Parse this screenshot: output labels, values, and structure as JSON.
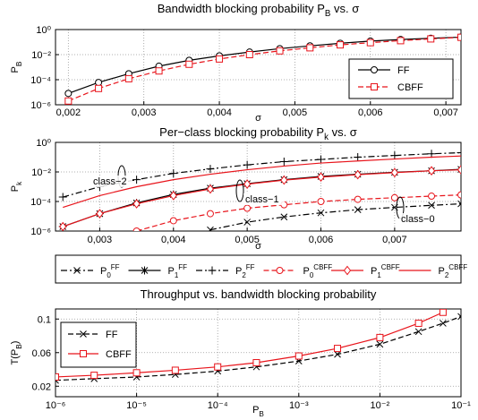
{
  "chart_data": [
    {
      "type": "line",
      "title": [
        "Bandwidth blocking probability P",
        "B",
        " vs. σ"
      ],
      "xlabel": "σ",
      "ylabel": [
        "P",
        "B"
      ],
      "x": [
        0.002,
        0.0024,
        0.0028,
        0.0032,
        0.0036,
        0.004,
        0.0044,
        0.0048,
        0.0052,
        0.0056,
        0.006,
        0.0064,
        0.0068,
        0.0072
      ],
      "series": [
        {
          "name": "FF",
          "color": "#000000",
          "style": "solid",
          "marker": "circle",
          "values": [
            8e-06,
            6e-05,
            0.0003,
            0.0012,
            0.0035,
            0.008,
            0.016,
            0.03,
            0.05,
            0.08,
            0.12,
            0.16,
            0.2,
            0.25
          ]
        },
        {
          "name": "CBFF",
          "color": "#e8141b",
          "style": "dashed",
          "marker": "square",
          "values": [
            2e-06,
            2e-05,
            0.00012,
            0.0005,
            0.0017,
            0.0045,
            0.01,
            0.02,
            0.035,
            0.06,
            0.09,
            0.13,
            0.18,
            0.24
          ]
        }
      ],
      "xlim": [
        0.00183,
        0.0072
      ],
      "xticks": [
        {
          "value": 0.002,
          "label": "0,002"
        },
        {
          "value": 0.003,
          "label": "0,003"
        },
        {
          "value": 0.004,
          "label": "0,004"
        },
        {
          "value": 0.005,
          "label": "0,005"
        },
        {
          "value": 0.006,
          "label": "0,006"
        },
        {
          "value": 0.007,
          "label": "0,007"
        }
      ],
      "ylog": true,
      "ylim": [
        1e-06,
        1
      ],
      "yticks": [
        {
          "value": 1e-06,
          "label": "10⁻⁶"
        },
        {
          "value": 0.0001,
          "label": "10⁻⁴"
        },
        {
          "value": 0.01,
          "label": "10⁻²"
        },
        {
          "value": 1,
          "label": "10⁰"
        }
      ],
      "grid": true,
      "legend": "lower right"
    },
    {
      "type": "line",
      "title": [
        "Per−class blocking probability P",
        "k",
        " vs. σ"
      ],
      "xlabel": "σ",
      "ylabel": [
        "P",
        "k"
      ],
      "annotations": [
        "class−2",
        "class−1",
        "class−0"
      ],
      "x": [
        0.0025,
        0.003,
        0.0035,
        0.004,
        0.0045,
        0.005,
        0.0055,
        0.006,
        0.0065,
        0.007,
        0.0075,
        0.0079
      ],
      "series": [
        {
          "name": "P",
          "sub": "0",
          "sup": "FF",
          "color": "#000000",
          "style": "dashdot",
          "marker": "x",
          "values": [
            null,
            null,
            null,
            null,
            1.2e-06,
            4e-06,
            9e-06,
            1.7e-05,
            2.8e-05,
            4e-05,
            5.5e-05,
            7e-05
          ]
        },
        {
          "name": "P",
          "sub": "1",
          "sup": "FF",
          "color": "#000000",
          "style": "solid",
          "marker": "star",
          "values": [
            2e-06,
            1.5e-05,
            8e-05,
            0.0003,
            0.0008,
            0.0016,
            0.003,
            0.005,
            0.007,
            0.0095,
            0.012,
            0.015
          ]
        },
        {
          "name": "P",
          "sub": "2",
          "sup": "FF",
          "color": "#000000",
          "style": "dashdot",
          "marker": "plus",
          "values": [
            0.0002,
            0.001,
            0.003,
            0.008,
            0.016,
            0.03,
            0.05,
            0.07,
            0.1,
            0.13,
            0.17,
            0.2
          ]
        },
        {
          "name": "P",
          "sub": "0",
          "sup": "CBFF",
          "color": "#e8141b",
          "style": "dashed",
          "marker": "circle",
          "values": [
            null,
            null,
            1e-06,
            5e-06,
            1.5e-05,
            3.5e-05,
            6e-05,
            0.0001,
            0.00014,
            0.00018,
            0.00023,
            0.00028
          ]
        },
        {
          "name": "P",
          "sub": "1",
          "sup": "CBFF",
          "color": "#e8141b",
          "style": "solid",
          "marker": "diamond",
          "values": [
            2e-06,
            1.5e-05,
            7e-05,
            0.00025,
            0.0007,
            0.0015,
            0.0028,
            0.0045,
            0.0065,
            0.009,
            0.012,
            0.014
          ]
        },
        {
          "name": "P",
          "sub": "2",
          "sup": "CBFF",
          "color": "#e8141b",
          "style": "solid",
          "values": [
            4e-05,
            0.00025,
            0.001,
            0.003,
            0.007,
            0.014,
            0.025,
            0.04,
            0.055,
            0.075,
            0.1,
            0.12
          ]
        }
      ],
      "xlim": [
        0.0024,
        0.0079
      ],
      "xticks": [
        {
          "value": 0.003,
          "label": "0,003"
        },
        {
          "value": 0.004,
          "label": "0,004"
        },
        {
          "value": 0.005,
          "label": "0,005"
        },
        {
          "value": 0.006,
          "label": "0,006"
        },
        {
          "value": 0.007,
          "label": "0,007"
        }
      ],
      "ylog": true,
      "ylim": [
        1e-06,
        1
      ],
      "yticks": [
        {
          "value": 1e-06,
          "label": "10⁻⁶"
        },
        {
          "value": 0.0001,
          "label": "10⁻⁴"
        },
        {
          "value": 0.01,
          "label": "10⁻²"
        },
        {
          "value": 1,
          "label": "10⁰"
        }
      ],
      "grid": true,
      "legend": "bottom outside"
    },
    {
      "type": "line",
      "title": "Throughput vs. bandwidth blocking probability",
      "xlabel": [
        "P",
        "B"
      ],
      "ylabel": [
        "T(P",
        "B",
        ")"
      ],
      "x": [
        1e-06,
        3e-06,
        1e-05,
        3e-05,
        0.0001,
        0.0003,
        0.001,
        0.003,
        0.01,
        0.03,
        0.06,
        0.1
      ],
      "series": [
        {
          "name": "FF",
          "color": "#000000",
          "style": "dashed",
          "marker": "x",
          "values": [
            0.027,
            0.029,
            0.031,
            0.034,
            0.038,
            0.043,
            0.05,
            0.058,
            0.07,
            0.085,
            0.095,
            0.103
          ]
        },
        {
          "name": "CBFF",
          "color": "#e8141b",
          "style": "solid",
          "marker": "square",
          "values": [
            0.031,
            0.033,
            0.036,
            0.039,
            0.043,
            0.048,
            0.056,
            0.065,
            0.078,
            0.095,
            0.108,
            null
          ]
        }
      ],
      "xlog": true,
      "xlim": [
        1e-06,
        0.1
      ],
      "xticks": [
        {
          "value": 1e-06,
          "label": "10⁻⁶"
        },
        {
          "value": 1e-05,
          "label": "10⁻⁵"
        },
        {
          "value": 0.0001,
          "label": "10⁻⁴"
        },
        {
          "value": 0.001,
          "label": "10⁻³"
        },
        {
          "value": 0.01,
          "label": "10⁻²"
        },
        {
          "value": 0.1,
          "label": "10⁻¹"
        }
      ],
      "ylim": [
        0.0075,
        0.112
      ],
      "yticks": [
        0.02,
        0.06,
        0.1
      ],
      "grid": true,
      "legend": "upper left"
    }
  ]
}
